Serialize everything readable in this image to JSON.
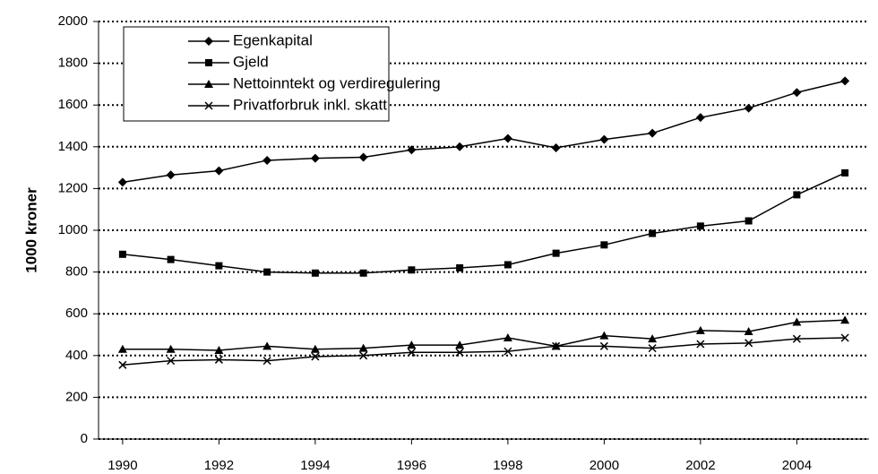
{
  "chart_data": {
    "type": "line",
    "y_label": "1000 kroner",
    "x": [
      1990,
      1991,
      1992,
      1993,
      1994,
      1995,
      1996,
      1997,
      1998,
      1999,
      2000,
      2001,
      2002,
      2003,
      2004,
      2005
    ],
    "xlim": [
      1989.5,
      2005.5
    ],
    "xticks": [
      1990,
      1992,
      1994,
      1996,
      1998,
      2000,
      2002,
      2004
    ],
    "ylim": [
      0,
      2000
    ],
    "yticks": [
      0,
      200,
      400,
      600,
      800,
      1000,
      1200,
      1400,
      1600,
      1800,
      2000
    ],
    "grid": true,
    "legend": "top-left",
    "series": [
      {
        "name": "Egenkapital",
        "color": "#000000",
        "marker": "diamond",
        "values": [
          1230,
          1265,
          1285,
          1335,
          1345,
          1350,
          1385,
          1400,
          1440,
          1395,
          1435,
          1465,
          1540,
          1585,
          1660,
          1715
        ]
      },
      {
        "name": "Gjeld",
        "color": "#000000",
        "marker": "square",
        "values": [
          885,
          860,
          830,
          800,
          795,
          795,
          810,
          820,
          835,
          890,
          930,
          985,
          1020,
          1045,
          1170,
          1275
        ]
      },
      {
        "name": "Nettoinntekt og verdiregulering",
        "color": "#000000",
        "marker": "triangle",
        "values": [
          430,
          430,
          425,
          445,
          430,
          435,
          450,
          450,
          485,
          445,
          495,
          480,
          520,
          515,
          560,
          570
        ]
      },
      {
        "name": "Privatforbruk inkl. skatt",
        "color": "#000000",
        "marker": "x",
        "values": [
          355,
          375,
          380,
          375,
          395,
          400,
          415,
          415,
          420,
          445,
          445,
          435,
          455,
          460,
          480,
          485
        ]
      }
    ]
  }
}
